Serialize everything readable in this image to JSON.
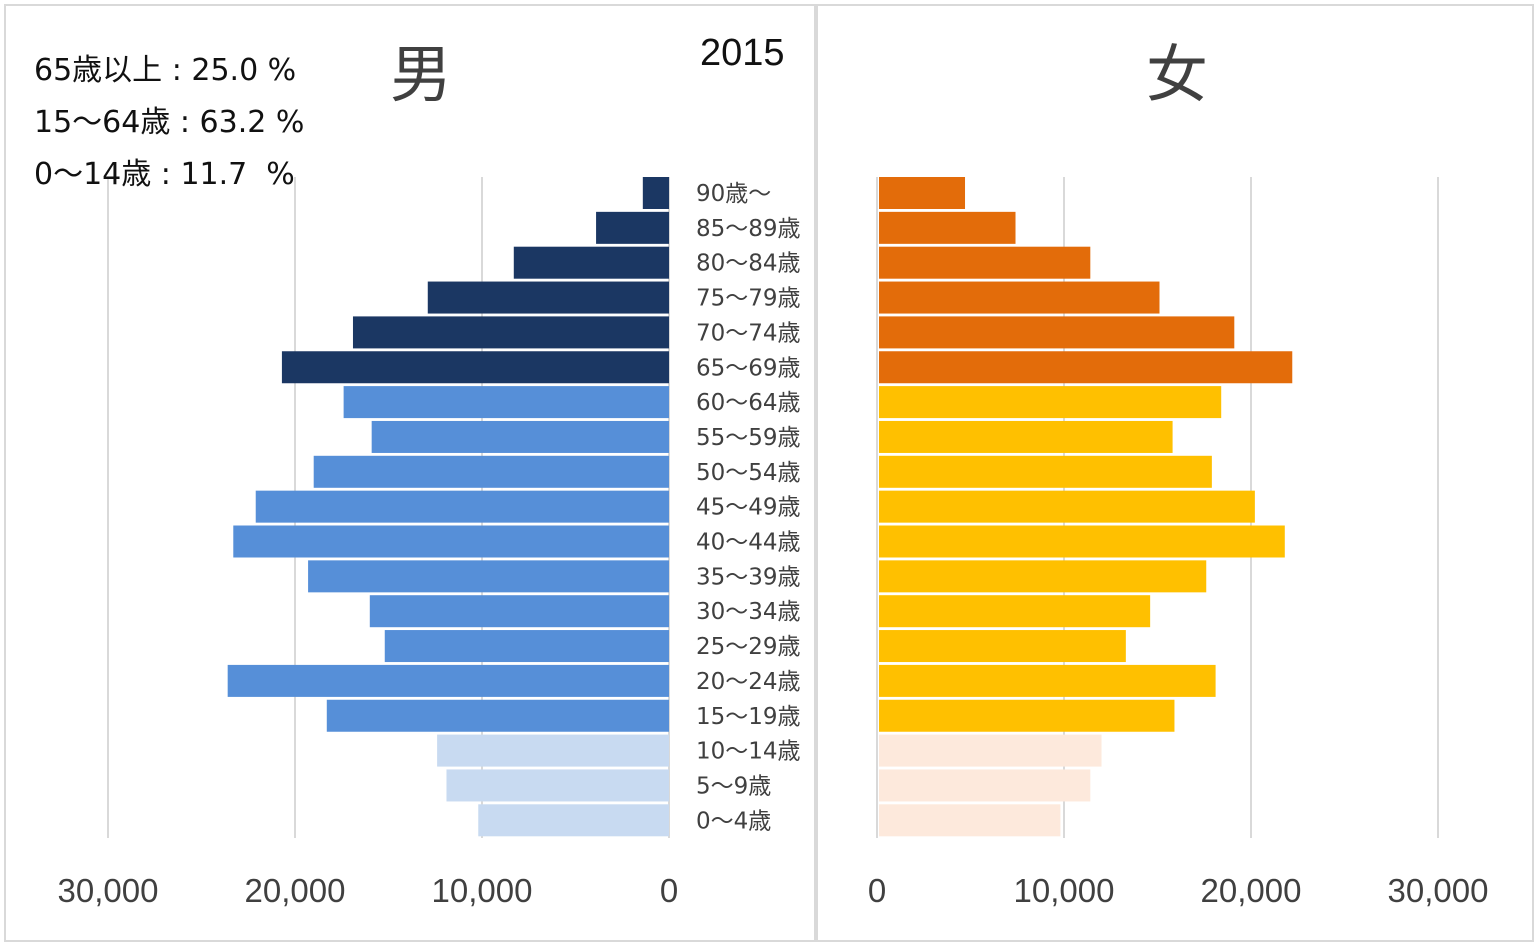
{
  "chart_data": {
    "type": "bar",
    "title": "2015",
    "male_label": "男",
    "female_label": "女",
    "stats": [
      "65歳以上 : 25.0 %",
      "15〜64歳 : 63.2 %",
      "0〜14歳 : 11.7  %"
    ],
    "categories": [
      "90歳〜",
      "85〜89歳",
      "80〜84歳",
      "75〜79歳",
      "70〜74歳",
      "65〜69歳",
      "60〜64歳",
      "55〜59歳",
      "50〜54歳",
      "45〜49歳",
      "40〜44歳",
      "35〜39歳",
      "30〜34歳",
      "25〜29歳",
      "20〜24歳",
      "15〜19歳",
      "10〜14歳",
      "5〜9歳",
      "0〜4歳"
    ],
    "series": [
      {
        "name": "男",
        "values": [
          1400,
          3900,
          8300,
          12900,
          16900,
          20700,
          17400,
          15900,
          19000,
          22100,
          23300,
          19300,
          16000,
          15200,
          23600,
          18300,
          12400,
          11900,
          10200
        ]
      },
      {
        "name": "女",
        "values": [
          4600,
          7300,
          11300,
          15000,
          19000,
          22100,
          18300,
          15700,
          17800,
          20100,
          21700,
          17500,
          14500,
          13200,
          18000,
          15800,
          11900,
          11300,
          9700
        ]
      }
    ],
    "xlim": [
      0,
      30000
    ],
    "xticks": [
      30000,
      20000,
      10000,
      0
    ],
    "xtick_labels_male": [
      "30,000",
      "20,000",
      "10,000",
      "0"
    ],
    "xtick_labels_female": [
      "0",
      "10,000",
      "20,000",
      "30,000"
    ],
    "grid": true,
    "colors": {
      "male_65plus": "#1b3763",
      "male_15_64": "#568fd8",
      "male_0_14": "#c8daf1",
      "female_65plus": "#e36c0a",
      "female_15_64": "#ffc000",
      "female_0_14": "#fde9dc",
      "grid": "#d9d9d9",
      "text": "#404040"
    }
  }
}
